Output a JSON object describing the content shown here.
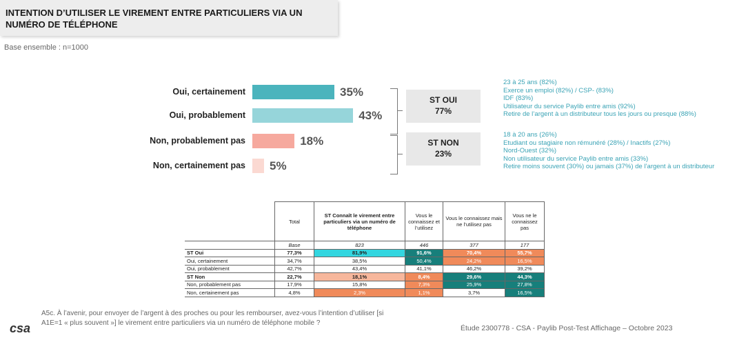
{
  "header": {
    "title": "INTENTION D’UTILISER LE VIREMENT ENTRE PARTICULIERS VIA UN NUMÉRO DE TÉLÉPHONE",
    "base": "Base ensemble : n=1000"
  },
  "chart_data": {
    "type": "bar",
    "orientation": "horizontal",
    "categories": [
      "Oui, certainement",
      "Oui, probablement",
      "Non, probablement pas",
      "Non, certainement pas"
    ],
    "values": [
      35,
      43,
      18,
      5
    ],
    "value_labels": [
      "35%",
      "43%",
      "18%",
      "5%"
    ],
    "colors": [
      "#4bb4bd",
      "#96d5da",
      "#f6a99e",
      "#fbd9d2"
    ],
    "xlim": [
      0,
      100
    ]
  },
  "groups": {
    "st_oui": {
      "label": "ST OUI",
      "value": "77%"
    },
    "st_non": {
      "label": "ST NON",
      "value": "23%"
    }
  },
  "profiles": {
    "oui": [
      "23 à 25 ans (82%)",
      "Exerce un emploi (82%) / CSP- (83%)",
      "IDF (83%)",
      "Utilisateur du service Paylib entre amis (92%)",
      "Retire de l’argent à un distributeur tous les jours ou presque (88%)"
    ],
    "non": [
      "18 à 20 ans (26%)",
      "Etudiant ou stagiaire non rémunéré (28%) / Inactifs (27%)",
      "Nord-Ouest (32%)",
      "Non utilisateur du service Paylib entre amis (33%)",
      "Retire moins souvent (30%) ou jamais (37%) de l’argent à un distributeur"
    ]
  },
  "table": {
    "headers": [
      "Total",
      "ST Connaît le virement entre particuliers via un numéro de téléphone",
      "Vous le connaissez et l’utilisez",
      "Vous le connaissez mais ne l’utilisez pas",
      "Vous ne le connaissez pas"
    ],
    "base_row": {
      "label": "",
      "cells": [
        "Base",
        "823",
        "446",
        "377",
        "177"
      ]
    },
    "rows": [
      {
        "label": "ST Oui",
        "cells": [
          "77,3%",
          "81,9%",
          "91,6%",
          "70,4%",
          "55,7%"
        ]
      },
      {
        "label": "Oui, certainement",
        "cells": [
          "34,7%",
          "38,5%",
          "50,4%",
          "24,2%",
          "16,5%"
        ]
      },
      {
        "label": "Oui, probablement",
        "cells": [
          "42,7%",
          "43,4%",
          "41,1%",
          "46,2%",
          "39,2%"
        ]
      },
      {
        "label": "ST Non",
        "cells": [
          "22,7%",
          "18,1%",
          "8,4%",
          "29,6%",
          "44,3%"
        ]
      },
      {
        "label": "Non, probablement pas",
        "cells": [
          "17,9%",
          "15,8%",
          "7,3%",
          "25,9%",
          "27,8%"
        ]
      },
      {
        "label": "Non, certainement pas",
        "cells": [
          "4,8%",
          "2,3%",
          "1,1%",
          "3,7%",
          "16,5%"
        ]
      }
    ],
    "cell_colors": [
      [
        "#ffffff",
        "#33d6e0",
        "#177f7b",
        "#f08a5a",
        "#f08a5a"
      ],
      [
        "#ffffff",
        "#ffffff",
        "#177f7b",
        "#f08a5a",
        "#f08a5a"
      ],
      [
        "#ffffff",
        "#ffffff",
        "#ffffff",
        "#ffffff",
        "#ffffff"
      ],
      [
        "#ffffff",
        "#f7b79c",
        "#f08a5a",
        "#177f7b",
        "#177f7b"
      ],
      [
        "#ffffff",
        "#ffffff",
        "#f08a5a",
        "#177f7b",
        "#177f7b"
      ],
      [
        "#ffffff",
        "#f08a5a",
        "#f08a5a",
        "#ffffff",
        "#177f7b"
      ]
    ]
  },
  "footer": {
    "question": "A5c. À l’avenir, pour envoyer de l’argent à des proches ou pour les rembourser, avez-vous l’intention d’utiliser [si A1E=1 « plus souvent »] le virement entre particuliers via un numéro de téléphone mobile ?",
    "logo": "csa",
    "study": "Étude 2300778 - CSA - Paylib Post-Test Affichage – Octobre 2023"
  }
}
